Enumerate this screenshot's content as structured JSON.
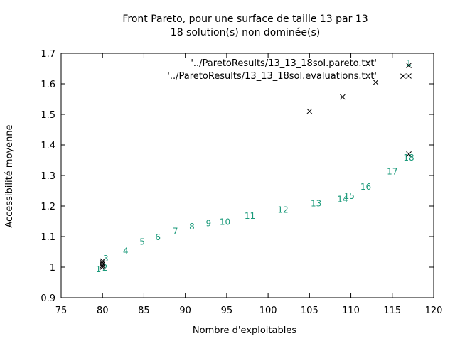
{
  "chart_data": {
    "type": "scatter",
    "title_line1": "Front Pareto, pour une surface de taille 13 par 13",
    "title_line2": "18 solution(s) non dominée(s)",
    "xlabel": "Nombre d'exploitables",
    "ylabel": "Accessibilité moyenne",
    "xlim": [
      75,
      120
    ],
    "ylim": [
      0.9,
      1.7
    ],
    "xticks": [
      "75",
      "80",
      "85",
      "90",
      "95",
      "100",
      "105",
      "110",
      "115",
      "120"
    ],
    "yticks": [
      "0.9",
      "1",
      "1.1",
      "1.2",
      "1.3",
      "1.4",
      "1.5",
      "1.6",
      "1.7"
    ],
    "grid": false,
    "legend_position": "top-right",
    "series": [
      {
        "name": "'../ParetoResults/13_13_18sol.pareto.txt'",
        "color": "#1a9a7a",
        "marker": "label",
        "points": [
          {
            "x": 79.5,
            "y": 0.995,
            "label": "1"
          },
          {
            "x": 80.3,
            "y": 1.0,
            "label": "2"
          },
          {
            "x": 80.4,
            "y": 1.03,
            "label": "3"
          },
          {
            "x": 82.8,
            "y": 1.055,
            "label": "4"
          },
          {
            "x": 84.8,
            "y": 1.085,
            "label": "5"
          },
          {
            "x": 86.7,
            "y": 1.1,
            "label": "6"
          },
          {
            "x": 88.8,
            "y": 1.12,
            "label": "7"
          },
          {
            "x": 90.8,
            "y": 1.135,
            "label": "8"
          },
          {
            "x": 92.8,
            "y": 1.145,
            "label": "9"
          },
          {
            "x": 94.8,
            "y": 1.15,
            "label": "10"
          },
          {
            "x": 97.8,
            "y": 1.17,
            "label": "11"
          },
          {
            "x": 101.8,
            "y": 1.19,
            "label": "12"
          },
          {
            "x": 105.8,
            "y": 1.21,
            "label": "13"
          },
          {
            "x": 109.0,
            "y": 1.225,
            "label": "14"
          },
          {
            "x": 109.8,
            "y": 1.235,
            "label": "15"
          },
          {
            "x": 111.8,
            "y": 1.265,
            "label": "16"
          },
          {
            "x": 115.0,
            "y": 1.315,
            "label": "17"
          },
          {
            "x": 117.0,
            "y": 1.36,
            "label": "18"
          }
        ]
      },
      {
        "name": "'../ParetoResults/13_13_18sol.evaluations.txt'",
        "color": "#000000",
        "marker": "x",
        "points": [
          {
            "x": 80,
            "y": 1.0
          },
          {
            "x": 80,
            "y": 1.005
          },
          {
            "x": 80,
            "y": 1.01
          },
          {
            "x": 80,
            "y": 1.015
          },
          {
            "x": 80,
            "y": 1.02
          },
          {
            "x": 105,
            "y": 1.51
          },
          {
            "x": 109,
            "y": 1.557
          },
          {
            "x": 113,
            "y": 1.605
          },
          {
            "x": 116.3,
            "y": 1.625
          },
          {
            "x": 117,
            "y": 1.66
          },
          {
            "x": 117,
            "y": 1.37
          }
        ]
      }
    ]
  }
}
